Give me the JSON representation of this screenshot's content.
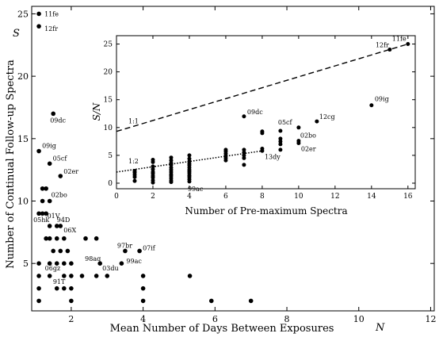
{
  "chart_data": [
    {
      "type": "scatter",
      "title": "",
      "xlabel": "Mean Number of Days Between Exposures",
      "ylabel": "Number of Continual Follow-up Spectra",
      "x_symbol": "N",
      "y_symbol": "S",
      "xlim": [
        0.9,
        12.1
      ],
      "ylim": [
        1.2,
        25.6
      ],
      "xticks": [
        2,
        4,
        6,
        8,
        10,
        12
      ],
      "yticks": [
        5,
        10,
        15,
        20,
        25
      ],
      "grid": false,
      "points": [
        [
          1.1,
          25
        ],
        [
          1.1,
          24
        ],
        [
          1.5,
          17
        ],
        [
          1.1,
          14
        ],
        [
          1.4,
          13
        ],
        [
          1.7,
          12
        ],
        [
          1.2,
          11
        ],
        [
          1.3,
          11
        ],
        [
          1.2,
          10
        ],
        [
          1.4,
          10
        ],
        [
          1.1,
          9
        ],
        [
          1.2,
          9
        ],
        [
          1.3,
          9
        ],
        [
          1.4,
          8
        ],
        [
          1.6,
          8
        ],
        [
          1.7,
          8
        ],
        [
          1.3,
          7
        ],
        [
          1.4,
          7
        ],
        [
          1.6,
          7
        ],
        [
          1.8,
          7
        ],
        [
          2.4,
          7
        ],
        [
          2.7,
          7
        ],
        [
          1.5,
          6
        ],
        [
          1.7,
          6
        ],
        [
          1.9,
          6
        ],
        [
          3.5,
          6
        ],
        [
          3.9,
          6
        ],
        [
          1.1,
          5
        ],
        [
          1.4,
          5
        ],
        [
          1.6,
          5
        ],
        [
          1.8,
          5
        ],
        [
          2.0,
          5
        ],
        [
          2.8,
          5
        ],
        [
          3.4,
          5
        ],
        [
          1.1,
          4
        ],
        [
          1.4,
          4
        ],
        [
          1.8,
          4
        ],
        [
          2.0,
          4
        ],
        [
          2.3,
          4
        ],
        [
          2.7,
          4
        ],
        [
          3.0,
          4
        ],
        [
          4.0,
          4
        ],
        [
          5.3,
          4
        ],
        [
          1.1,
          3
        ],
        [
          1.6,
          3
        ],
        [
          1.8,
          3
        ],
        [
          2.0,
          3
        ],
        [
          4.0,
          3
        ],
        [
          1.1,
          2
        ],
        [
          2.0,
          2
        ],
        [
          4.0,
          2
        ],
        [
          5.9,
          2
        ],
        [
          7.0,
          2
        ]
      ],
      "annotations": [
        {
          "label": "11fe",
          "x": 1.1,
          "y": 25
        },
        {
          "label": "12fr",
          "x": 1.1,
          "y": 24
        },
        {
          "label": "09dc",
          "x": 1.5,
          "y": 17
        },
        {
          "label": "09ig",
          "x": 1.1,
          "y": 14
        },
        {
          "label": "05cf",
          "x": 1.4,
          "y": 13
        },
        {
          "label": "02er",
          "x": 1.7,
          "y": 12
        },
        {
          "label": "02bo",
          "x": 1.4,
          "y": 10
        },
        {
          "label": "01V",
          "x": 1.2,
          "y": 9
        },
        {
          "label": "05hk",
          "x": 1.1,
          "y": 9
        },
        {
          "label": "94D",
          "x": 1.6,
          "y": 8
        },
        {
          "label": "06X",
          "x": 1.7,
          "y": 8
        },
        {
          "label": "97br",
          "x": 3.5,
          "y": 6
        },
        {
          "label": "07if",
          "x": 3.9,
          "y": 6
        },
        {
          "label": "98aq",
          "x": 2.8,
          "y": 5
        },
        {
          "label": "99ac",
          "x": 3.4,
          "y": 5
        },
        {
          "label": "03du",
          "x": 2.8,
          "y": 5
        },
        {
          "label": "06gz",
          "x": 1.4,
          "y": 5
        },
        {
          "label": "91T",
          "x": 1.8,
          "y": 4
        }
      ]
    },
    {
      "type": "scatter",
      "title": "",
      "xlabel": "Number of Pre-maximum Spectra",
      "ylabel": "S/N",
      "xlim": [
        0,
        16.4
      ],
      "ylim": [
        -1,
        26.5
      ],
      "xticks": [
        0,
        2,
        4,
        6,
        8,
        10,
        12,
        14,
        16
      ],
      "yticks": [
        0,
        5,
        10,
        15,
        20,
        25
      ],
      "grid": false,
      "points": [
        [
          1,
          0.4
        ],
        [
          1,
          1.1
        ],
        [
          1,
          1.5
        ],
        [
          1,
          1.9
        ],
        [
          1,
          2.2
        ],
        [
          2,
          0.1
        ],
        [
          2,
          0.5
        ],
        [
          2,
          1.0
        ],
        [
          2,
          1.3
        ],
        [
          2,
          1.7
        ],
        [
          2,
          2.0
        ],
        [
          2,
          2.5
        ],
        [
          2,
          3.0
        ],
        [
          2,
          3.8
        ],
        [
          2,
          4.2
        ],
        [
          3,
          0.2
        ],
        [
          3,
          0.5
        ],
        [
          3,
          0.9
        ],
        [
          3,
          1.3
        ],
        [
          3,
          1.6
        ],
        [
          3,
          2.0
        ],
        [
          3,
          2.4
        ],
        [
          3,
          2.8
        ],
        [
          3,
          3.3
        ],
        [
          3,
          3.6
        ],
        [
          3,
          4.1
        ],
        [
          3,
          4.6
        ],
        [
          4,
          0.3
        ],
        [
          4,
          0.7
        ],
        [
          4,
          1.1
        ],
        [
          4,
          1.4
        ],
        [
          4,
          1.8
        ],
        [
          4,
          2.1
        ],
        [
          4,
          2.4
        ],
        [
          4,
          2.8
        ],
        [
          4,
          3.2
        ],
        [
          4,
          3.5
        ],
        [
          4,
          3.9
        ],
        [
          4,
          4.4
        ],
        [
          4,
          5.0
        ],
        [
          6,
          4.1
        ],
        [
          6,
          4.5
        ],
        [
          6,
          4.9
        ],
        [
          6,
          5.3
        ],
        [
          6,
          5.7
        ],
        [
          6,
          6.0
        ],
        [
          7,
          3.3
        ],
        [
          7,
          4.5
        ],
        [
          7,
          5.0
        ],
        [
          7,
          5.5
        ],
        [
          7,
          6.0
        ],
        [
          7,
          12.0
        ],
        [
          8,
          5.8
        ],
        [
          8,
          6.2
        ],
        [
          8,
          9.0
        ],
        [
          8,
          9.3
        ],
        [
          9,
          6.0
        ],
        [
          9,
          7.0
        ],
        [
          9,
          7.5
        ],
        [
          9,
          8.0
        ],
        [
          9,
          9.4
        ],
        [
          10,
          7.2
        ],
        [
          10,
          7.6
        ],
        [
          10,
          10.0
        ],
        [
          11,
          11.1
        ],
        [
          14,
          14.0
        ],
        [
          15,
          24.0
        ],
        [
          16,
          25.0
        ]
      ],
      "lines": [
        {
          "name": "1:1",
          "style": "dashed",
          "x": [
            0,
            16
          ],
          "y": [
            9.3,
            25.0
          ]
        },
        {
          "name": "1:2",
          "style": "dotted",
          "x": [
            0,
            8
          ],
          "y": [
            2.0,
            5.8
          ]
        }
      ],
      "annotations": [
        {
          "label": "11fe",
          "x": 16,
          "y": 25
        },
        {
          "label": "12fr",
          "x": 15,
          "y": 24
        },
        {
          "label": "09ig",
          "x": 14,
          "y": 14
        },
        {
          "label": "12cg",
          "x": 11,
          "y": 11.1
        },
        {
          "label": "09dc",
          "x": 7,
          "y": 12
        },
        {
          "label": "05cf",
          "x": 9,
          "y": 9.4
        },
        {
          "label": "02bo",
          "x": 10,
          "y": 7.6
        },
        {
          "label": "02er",
          "x": 10,
          "y": 7.2
        },
        {
          "label": "13dy",
          "x": 8,
          "y": 5.8
        },
        {
          "label": "99ac",
          "x": 4,
          "y": 0.3
        },
        {
          "label": "1:1",
          "x": 0,
          "y": 9.3
        },
        {
          "label": "1:2",
          "x": 0,
          "y": 2.0
        }
      ]
    }
  ]
}
